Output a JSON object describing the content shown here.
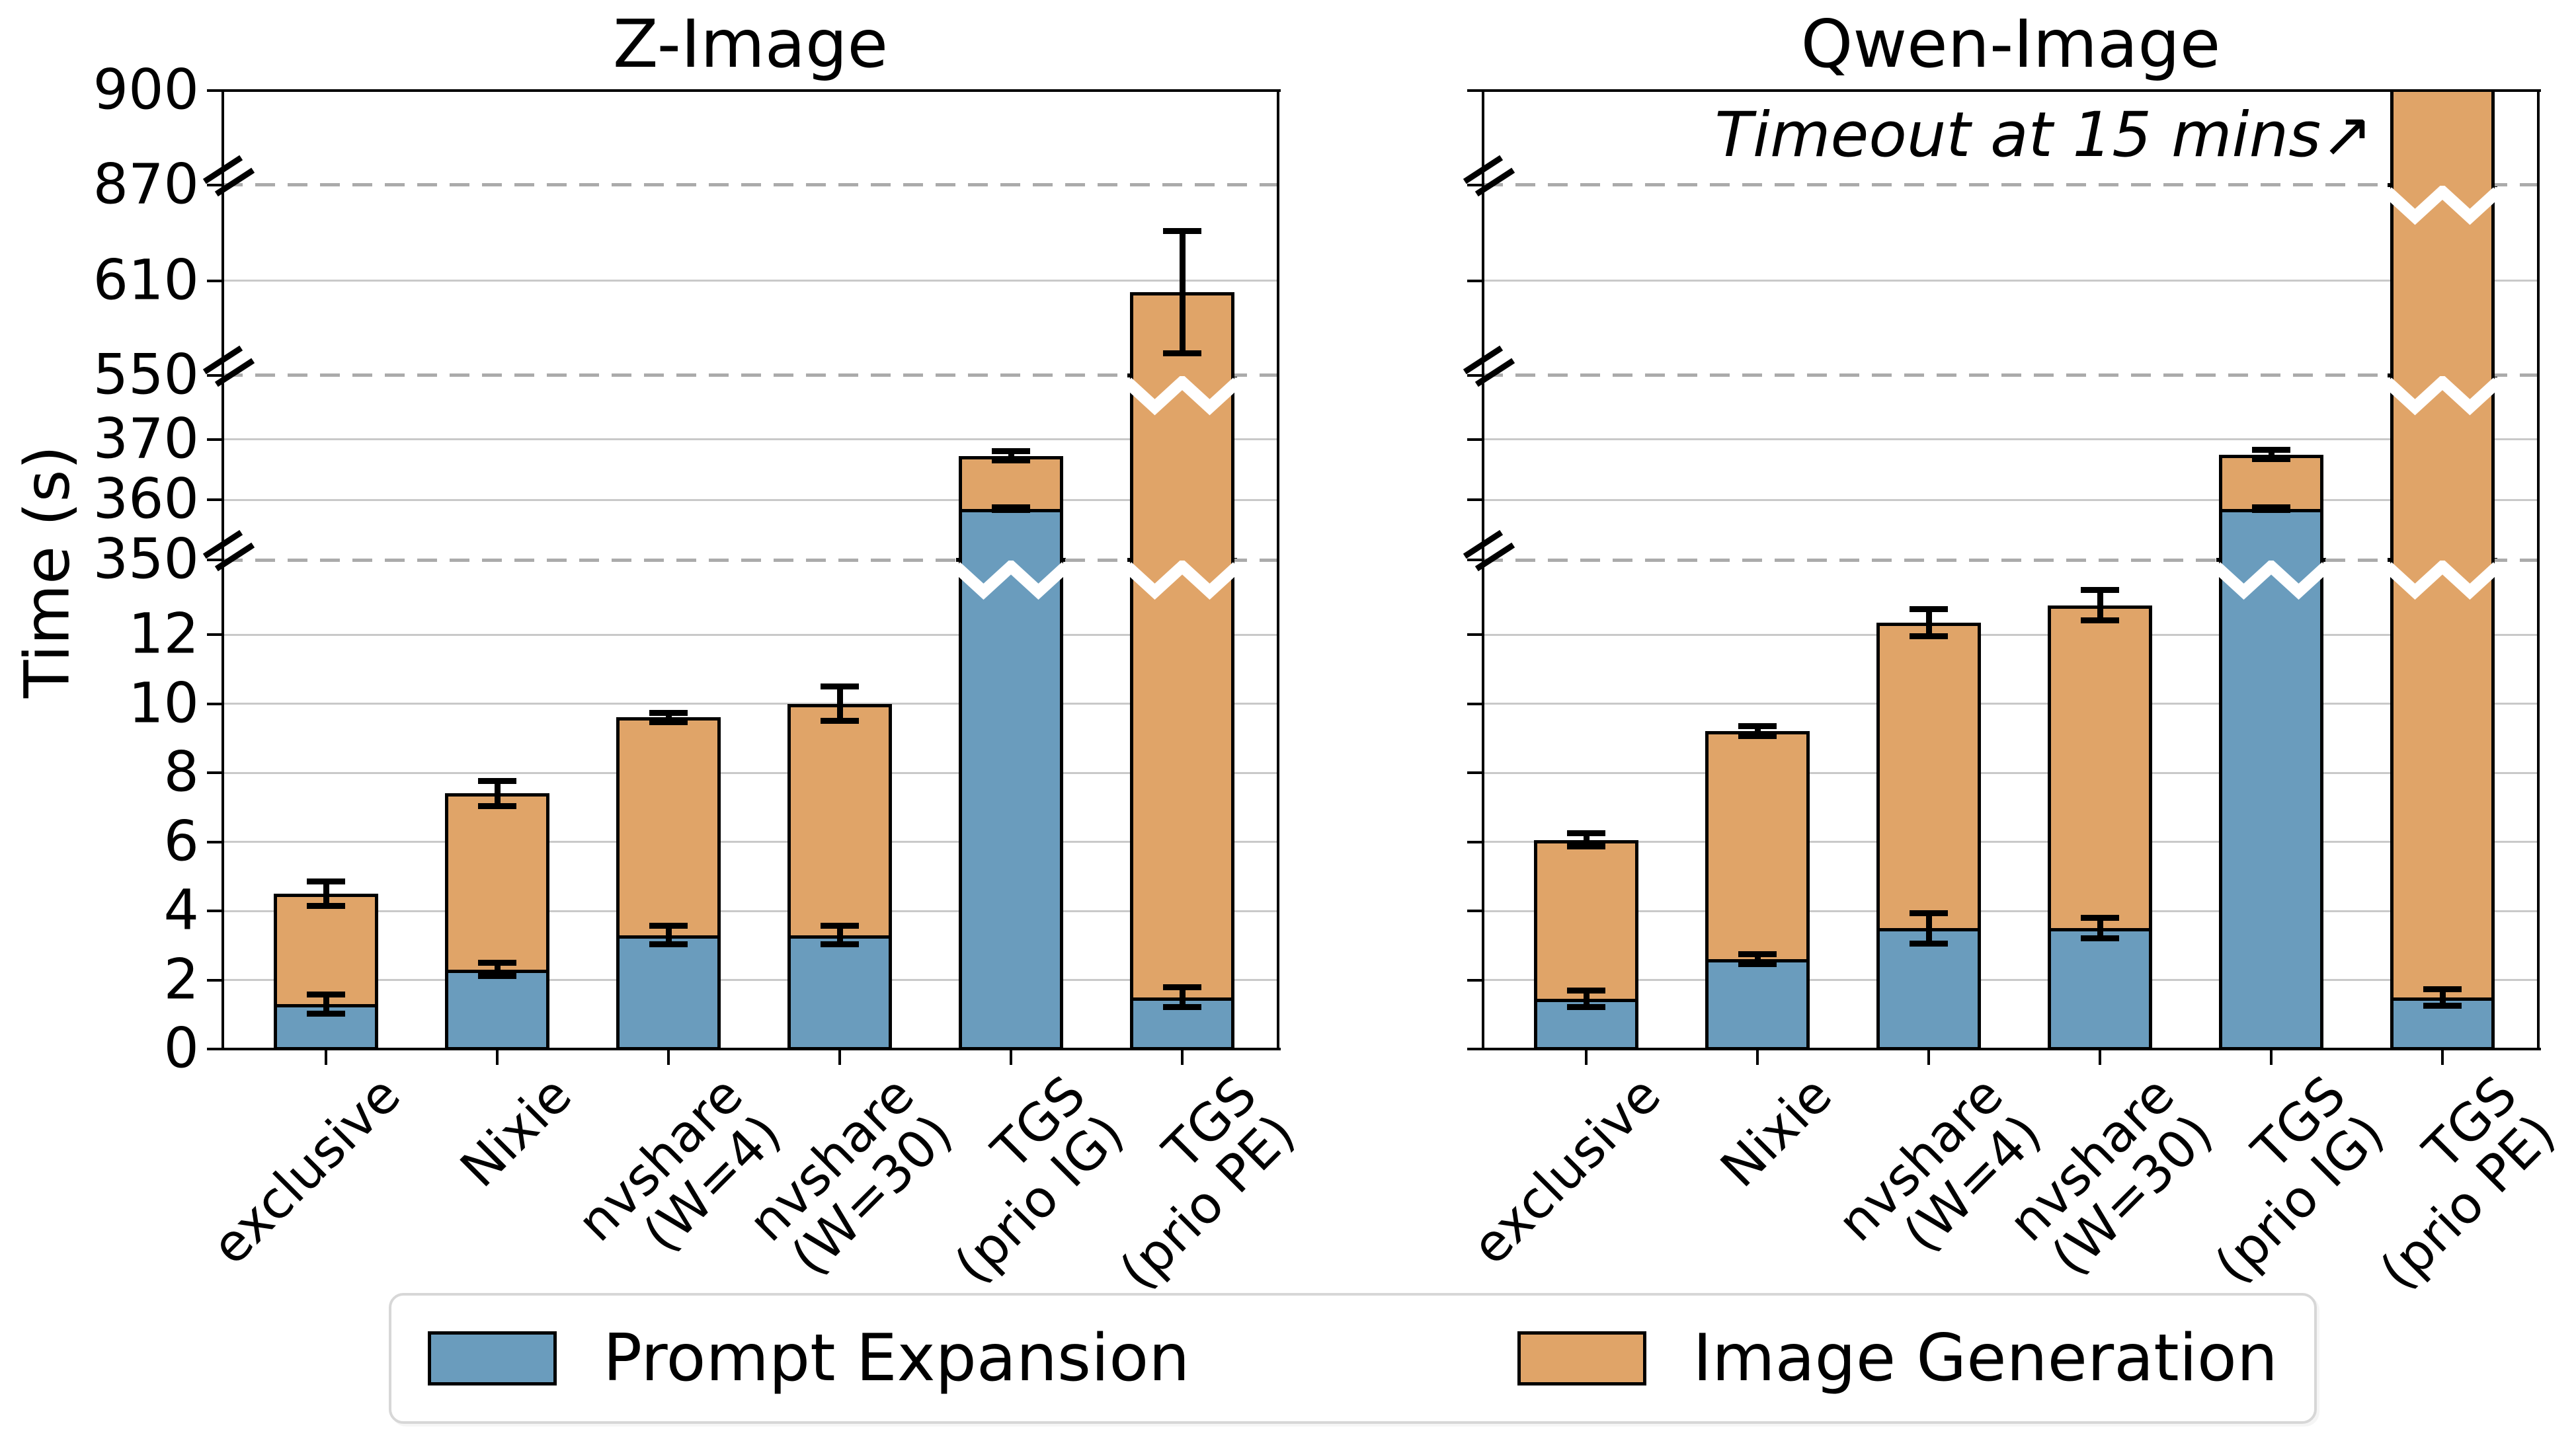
{
  "figure": {
    "ylabel": "Time (s)",
    "legend": {
      "items": [
        {
          "label": "Prompt Expansion",
          "color": "#6a9cbd"
        },
        {
          "label": "Image Generation",
          "color": "#e0a468"
        }
      ]
    },
    "colors": {
      "prompt_expansion": "#6a9cbd",
      "image_generation": "#e0a468",
      "bar_edge": "#000000",
      "grid_solid": "#c9c9c9",
      "grid_dashed": "#ababab",
      "error_bar": "#000000",
      "break_zigzag": "#ffffff"
    }
  },
  "chart_data": [
    {
      "type": "bar",
      "stacked": true,
      "title": "Z-Image",
      "annotation": "",
      "xlabel": "",
      "ylabel": "Time (s)",
      "categories": [
        "exclusive",
        "Nixie",
        "nvshare\n(W=4)",
        "nvshare\n(W=30)",
        "TGS\n(prio IG)",
        "TGS\n(prio PE)"
      ],
      "y_axis": {
        "ticks": [
          900,
          870,
          610,
          550,
          370,
          360,
          350,
          12,
          10,
          8,
          6,
          4,
          2,
          0
        ],
        "breaks_at": [
          350,
          550,
          870
        ],
        "segments": [
          {
            "v0": 0,
            "v1": 12,
            "f0": 0.0,
            "f1": 0.4324
          },
          {
            "v0": 350,
            "v1": 370,
            "f0": 0.5103,
            "f1": 0.6359
          },
          {
            "v0": 550,
            "v1": 610,
            "f0": 0.7028,
            "f1": 0.8014
          },
          {
            "v0": 870,
            "v1": 900,
            "f0": 0.9014,
            "f1": 1.0
          }
        ]
      },
      "series": [
        {
          "name": "Prompt Expansion",
          "values": [
            1.3,
            2.3,
            3.3,
            3.3,
            358.5,
            1.5
          ],
          "errors": [
            0.28,
            0.2,
            0.28,
            0.28,
            0.3,
            0.3
          ]
        },
        {
          "name": "Image Generation",
          "values": [
            3.2,
            5.1,
            6.3,
            6.7,
            8.8,
            601.5
          ]
        }
      ],
      "totals": [
        4.5,
        7.4,
        9.6,
        10.0,
        367.3,
        603
      ],
      "total_errors": [
        0.37,
        0.37,
        0.15,
        0.5,
        0.8,
        39
      ],
      "clipped_bars": []
    },
    {
      "type": "bar",
      "stacked": true,
      "title": "Qwen-Image",
      "annotation": "Timeout at 15 mins↗",
      "xlabel": "",
      "ylabel": "Time (s)",
      "categories": [
        "exclusive",
        "Nixie",
        "nvshare\n(W=4)",
        "nvshare\n(W=30)",
        "TGS\n(prio IG)",
        "TGS\n(prio PE)"
      ],
      "y_axis": {
        "ticks": [
          900,
          870,
          610,
          550,
          370,
          360,
          350,
          12,
          10,
          8,
          6,
          4,
          2,
          0
        ],
        "breaks_at": [
          350,
          550,
          870
        ],
        "segments": [
          {
            "v0": 0,
            "v1": 12,
            "f0": 0.0,
            "f1": 0.4324
          },
          {
            "v0": 350,
            "v1": 370,
            "f0": 0.5103,
            "f1": 0.6359
          },
          {
            "v0": 550,
            "v1": 610,
            "f0": 0.7028,
            "f1": 0.8014
          },
          {
            "v0": 870,
            "v1": 900,
            "f0": 0.9014,
            "f1": 1.0
          }
        ]
      },
      "series": [
        {
          "name": "Prompt Expansion",
          "values": [
            1.45,
            2.6,
            3.5,
            3.5,
            358.5,
            1.5
          ],
          "errors": [
            0.25,
            0.15,
            0.45,
            0.3,
            0.3,
            0.25
          ]
        },
        {
          "name": "Image Generation",
          "values": [
            4.6,
            6.6,
            8.85,
            9.35,
            9.0,
            898.5
          ]
        }
      ],
      "totals": [
        6.05,
        9.2,
        12.35,
        12.85,
        367.5,
        900
      ],
      "total_errors": [
        0.2,
        0.15,
        0.4,
        0.45,
        0.8,
        1
      ],
      "clipped_bars": [
        5
      ],
      "timeout_note": "Bar for TGS (prio PE) is clipped at 900 s (15 min timeout)"
    }
  ]
}
